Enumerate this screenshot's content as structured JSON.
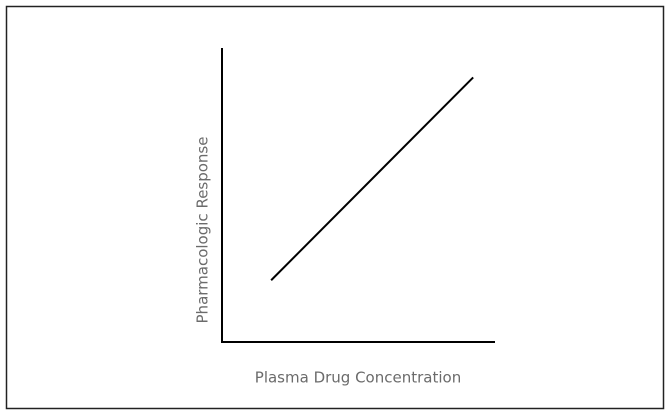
{
  "chart_data": {
    "type": "line",
    "x_label": "Plasma Drug Concentration",
    "y_label": "Pharmacologic Response",
    "x": [
      18,
      92
    ],
    "series": [
      {
        "color": "#000000",
        "values": [
          21,
          90
        ]
      }
    ],
    "xlim": [
      0,
      100
    ],
    "ylim": [
      0,
      100
    ]
  }
}
